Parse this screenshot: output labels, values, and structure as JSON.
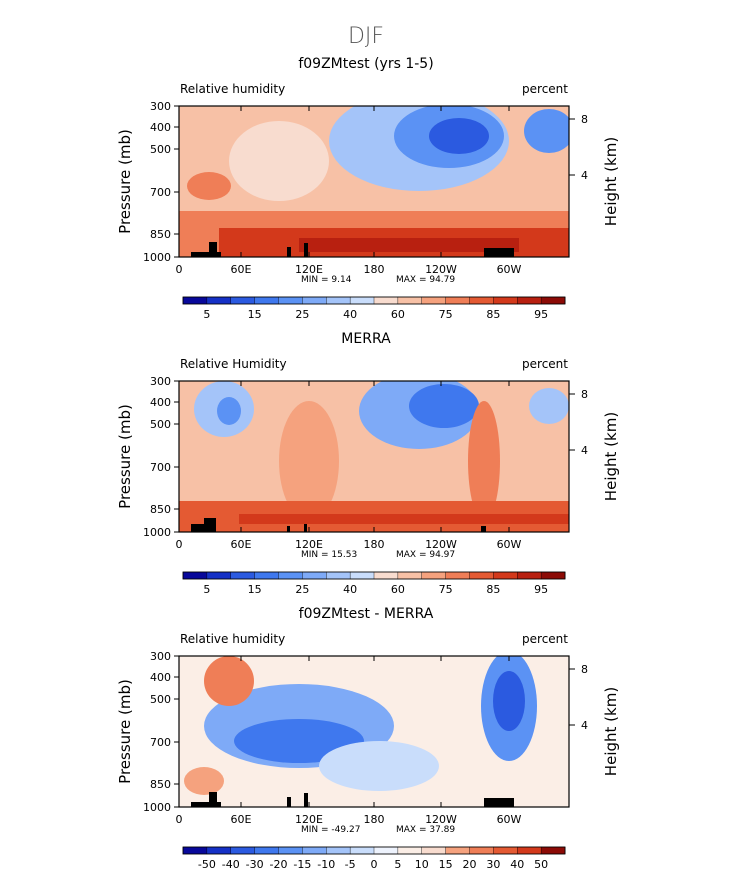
{
  "figure_title": "DJF",
  "chart_data": [
    {
      "type": "heatmap",
      "title": "f09ZMtest (yrs 1-5)",
      "subtitle_left": "Relative humidity",
      "subtitle_right": "percent",
      "ylabel": "Pressure (mb)",
      "ylabel_right": "Height (km)",
      "x_ticks": [
        "0",
        "60E",
        "120E",
        "180",
        "120W",
        "60W"
      ],
      "y_ticks": [
        "300",
        "400",
        "500",
        "700",
        "850",
        "1000"
      ],
      "y_right_ticks": [
        "8",
        "4"
      ],
      "min_text": "MIN =     9.14",
      "max_text": "MAX =   94.79",
      "min": 9.14,
      "max": 94.79,
      "colorbar_labels": [
        "5",
        "15",
        "25",
        "40",
        "60",
        "75",
        "85",
        "95"
      ],
      "colorbar_kind": "humidity",
      "pattern": "model"
    },
    {
      "type": "heatmap",
      "title": "MERRA",
      "subtitle_left": "Relative Humidity",
      "subtitle_right": "percent",
      "ylabel": "Pressure (mb)",
      "ylabel_right": "Height (km)",
      "x_ticks": [
        "0",
        "60E",
        "120E",
        "180",
        "120W",
        "60W"
      ],
      "y_ticks": [
        "300",
        "400",
        "500",
        "700",
        "850",
        "1000"
      ],
      "y_right_ticks": [
        "8",
        "4"
      ],
      "min_text": "MIN =   15.53",
      "max_text": "MAX =   94.97",
      "min": 15.53,
      "max": 94.97,
      "colorbar_labels": [
        "5",
        "15",
        "25",
        "40",
        "60",
        "75",
        "85",
        "95"
      ],
      "colorbar_kind": "humidity",
      "pattern": "obs"
    },
    {
      "type": "heatmap",
      "title": "f09ZMtest - MERRA",
      "subtitle_left": "Relative humidity",
      "subtitle_right": "percent",
      "ylabel": "Pressure (mb)",
      "ylabel_right": "Height (km)",
      "x_ticks": [
        "0",
        "60E",
        "120E",
        "180",
        "120W",
        "60W"
      ],
      "y_ticks": [
        "300",
        "400",
        "500",
        "700",
        "850",
        "1000"
      ],
      "y_right_ticks": [
        "8",
        "4"
      ],
      "min_text": "MIN =  -49.27",
      "max_text": "MAX =   37.89",
      "min": -49.27,
      "max": 37.89,
      "colorbar_labels": [
        "-50",
        "-40",
        "-30",
        "-20",
        "-15",
        "-10",
        "-5",
        "0",
        "5",
        "10",
        "15",
        "20",
        "30",
        "40",
        "50"
      ],
      "colorbar_kind": "difference",
      "pattern": "diff"
    }
  ],
  "colors": {
    "humidity_scale": [
      "#08089a",
      "#1531c6",
      "#2b5ae0",
      "#3f78ee",
      "#5b92f4",
      "#7eaaf7",
      "#a4c4f9",
      "#c9ddfb",
      "#f8dccf",
      "#f7c1a6",
      "#f5a27e",
      "#ef7e57",
      "#e45a33",
      "#d3391b",
      "#b82010",
      "#8c0b06"
    ],
    "diff_scale": [
      "#08089a",
      "#1531c6",
      "#2b5ae0",
      "#3f78ee",
      "#5b92f4",
      "#7eaaf7",
      "#a4c4f9",
      "#c9ddfb",
      "#eef3fd",
      "#fbeee6",
      "#f8dccf",
      "#f5a27e",
      "#ef7e57",
      "#e45a33",
      "#d3391b",
      "#8c0b06"
    ],
    "land_mask": "#000000"
  }
}
